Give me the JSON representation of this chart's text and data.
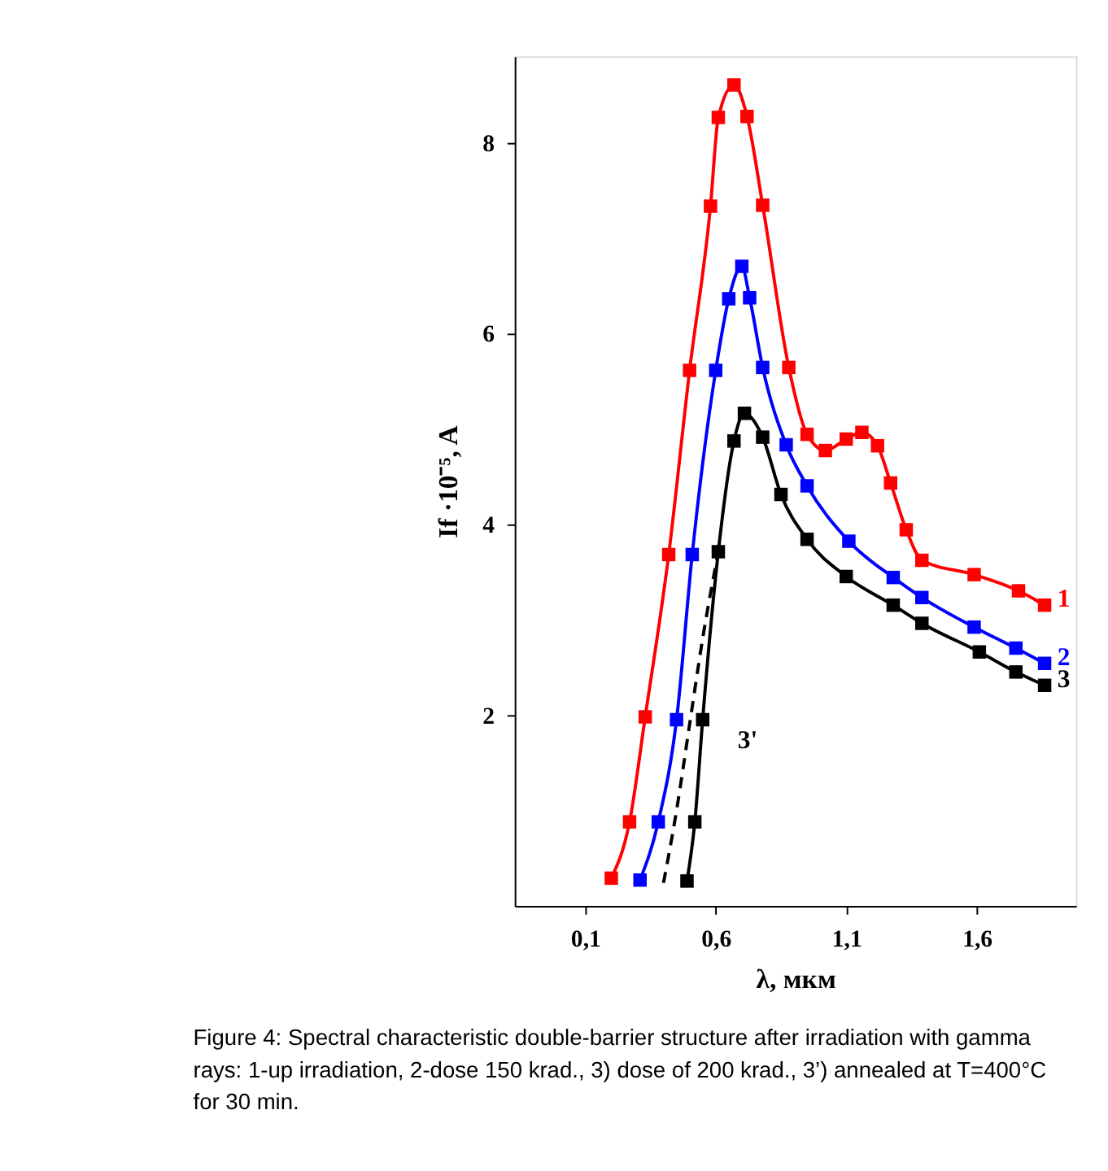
{
  "chart_data": {
    "type": "line",
    "xlabel": "λ, мкм",
    "ylabel": "If ·10⁻⁵, A",
    "xlim": [
      -0.17,
      1.98
    ],
    "ylim": [
      0,
      8.9
    ],
    "xticks": [
      {
        "value": 0.1,
        "label": "0,1"
      },
      {
        "value": 0.6,
        "label": "0,6"
      },
      {
        "value": 1.1,
        "label": "1,1"
      },
      {
        "value": 1.6,
        "label": "1,6"
      }
    ],
    "yticks": [
      2,
      4,
      6,
      8
    ],
    "grid": false,
    "marker": "square",
    "line_style": "solid",
    "annotations": [
      "Figure 4: Spectral characteristic double-barrier structure after irradiation with gamma rays: 1-up irradiation, 2-dose 150 krad., 3) dose of 200 krad., 3’) annealed at T=400°C for 30 min."
    ],
    "series": [
      {
        "name": "1",
        "color": "#ff0000",
        "x": [
          0.2,
          0.27,
          0.33,
          0.42,
          0.5,
          0.58,
          0.61,
          0.67,
          0.72,
          0.78,
          0.88,
          0.95,
          1.02,
          1.1,
          1.16,
          1.22,
          1.27,
          1.33,
          1.39,
          1.59,
          1.76,
          1.86
        ],
        "values": [
          0.29,
          0.88,
          1.98,
          3.68,
          5.61,
          7.33,
          8.26,
          8.6,
          8.27,
          7.34,
          5.64,
          4.94,
          4.77,
          4.89,
          4.96,
          4.82,
          4.43,
          3.94,
          3.62,
          3.47,
          3.3,
          3.15
        ]
      },
      {
        "name": "2",
        "color": "#0000ff",
        "x": [
          0.31,
          0.38,
          0.45,
          0.51,
          0.6,
          0.65,
          0.7,
          0.73,
          0.78,
          0.87,
          0.95,
          1.11,
          1.28,
          1.39,
          1.59,
          1.75,
          1.86
        ],
        "values": [
          0.27,
          0.88,
          1.95,
          3.68,
          5.61,
          6.36,
          6.7,
          6.37,
          5.64,
          4.83,
          4.4,
          3.82,
          3.44,
          3.23,
          2.92,
          2.7,
          2.54
        ]
      },
      {
        "name": "3",
        "color": "#000000",
        "x": [
          0.49,
          0.52,
          0.55,
          0.61,
          0.67,
          0.71,
          0.78,
          0.85,
          0.95,
          1.1,
          1.28,
          1.39,
          1.61,
          1.75,
          1.86
        ],
        "values": [
          0.26,
          0.88,
          1.95,
          3.71,
          4.87,
          5.16,
          4.91,
          4.31,
          3.84,
          3.45,
          3.15,
          2.96,
          2.66,
          2.45,
          2.31
        ]
      },
      {
        "name": "3'",
        "color": "#000000",
        "marker": "none",
        "line_style": "dashed",
        "x": [
          0.4,
          0.45,
          0.5,
          0.55,
          0.61
        ],
        "values": [
          0.24,
          1.0,
          1.9,
          2.8,
          3.71
        ]
      }
    ]
  }
}
